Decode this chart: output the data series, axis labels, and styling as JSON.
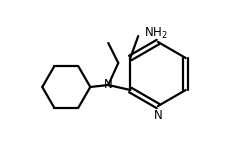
{
  "bg_color": "#ffffff",
  "line_color": "#000000",
  "line_width": 1.6,
  "font_size": 8.5,
  "figsize": [
    2.34,
    1.52
  ],
  "dpi": 100,
  "xlim": [
    0,
    234
  ],
  "ylim": [
    0,
    152
  ]
}
